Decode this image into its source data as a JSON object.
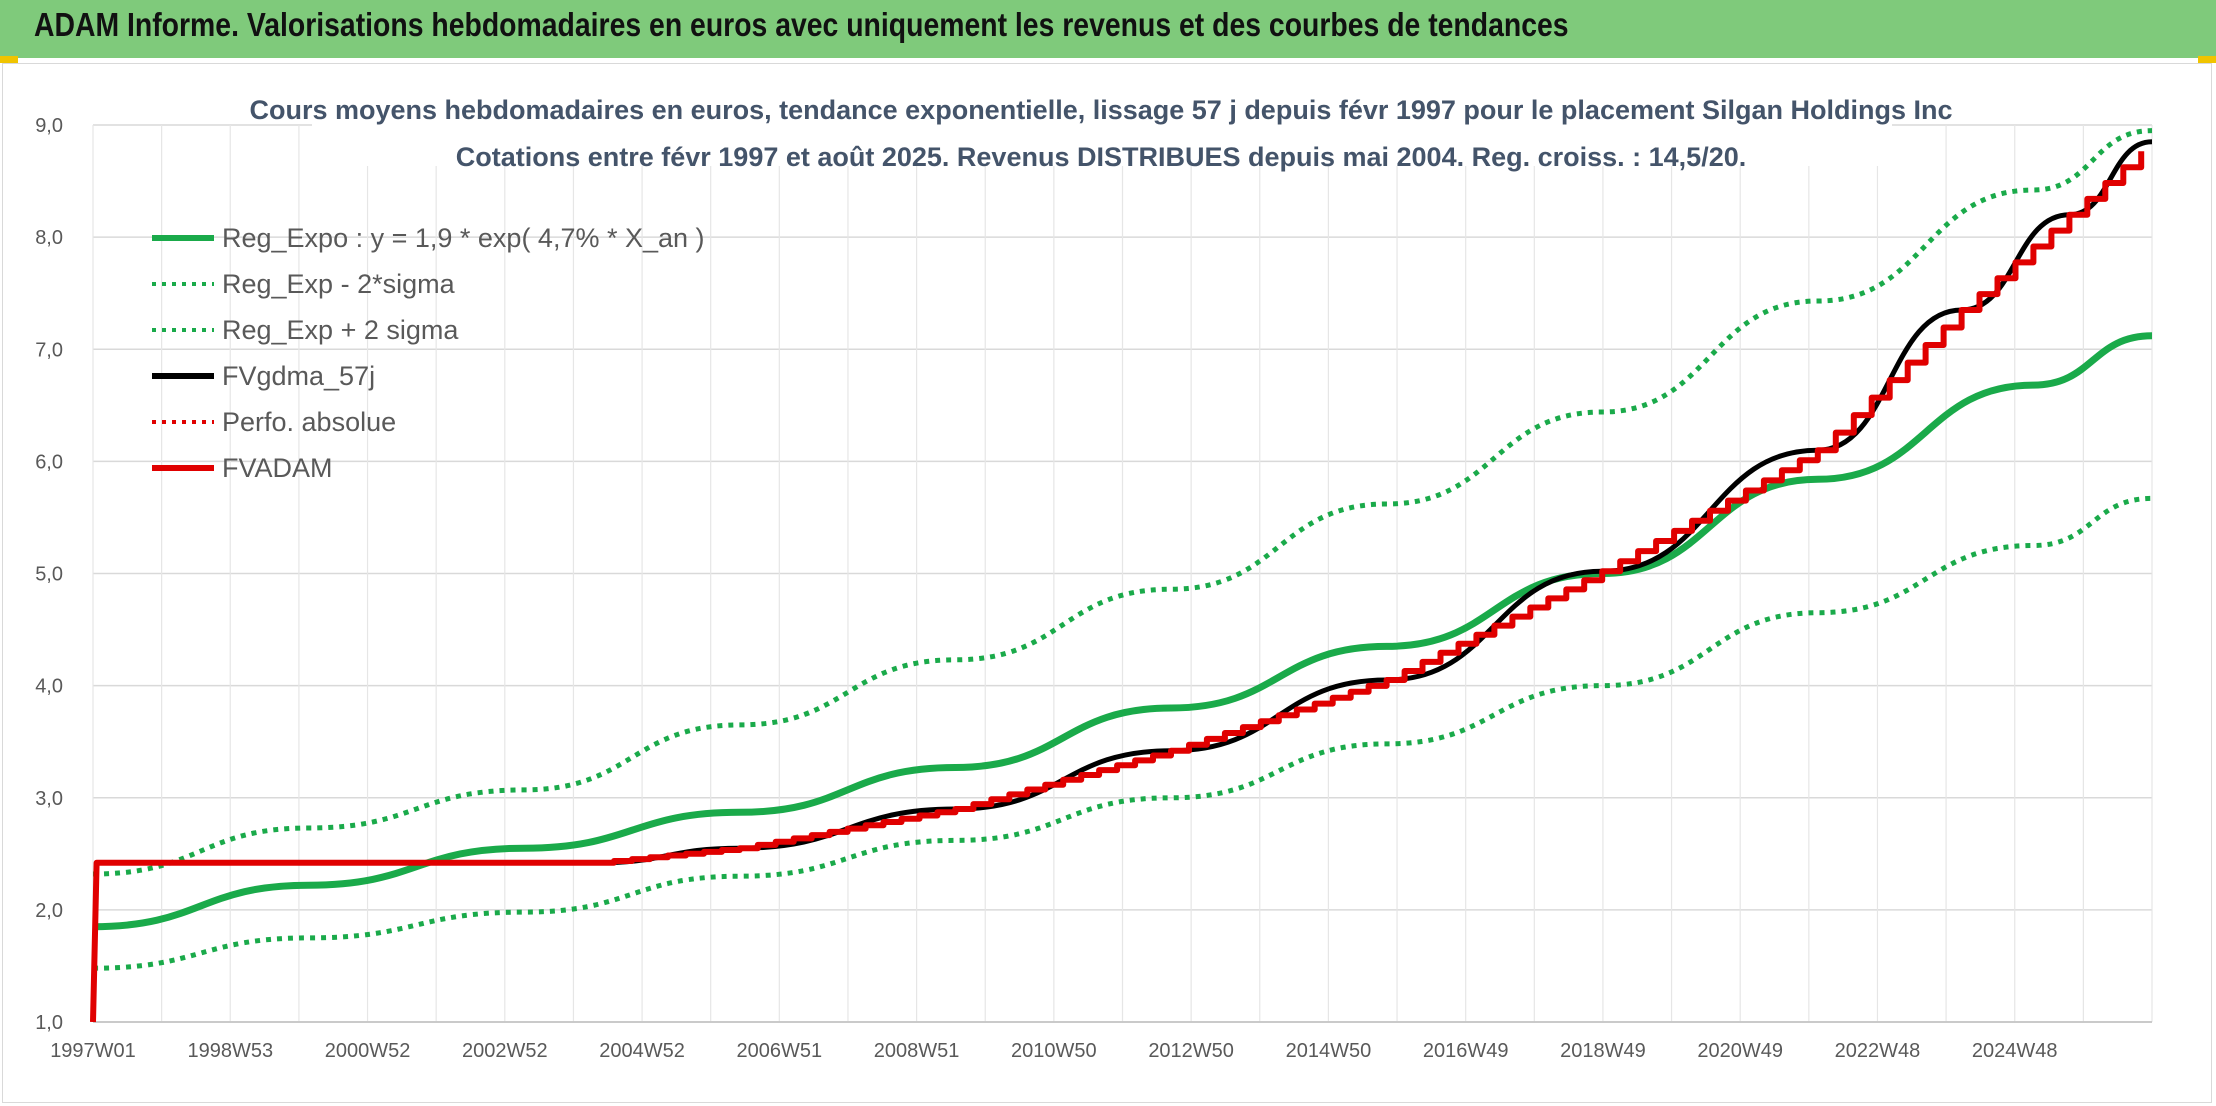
{
  "banner": {
    "title": "ADAM Informe. Valorisations hebdomadaires en euros avec uniquement les revenus et des courbes de tendances"
  },
  "colors": {
    "banner_bg": "#7fca7b",
    "accent_yellow": "#f0c400",
    "trend_green": "#1aaa4a",
    "fvadam_red": "#e00000",
    "fvgdma_black": "#000000"
  },
  "chart_data": {
    "type": "line",
    "title": "Cours moyens hebdomadaires en euros, tendance exponentielle, lissage 57 j depuis févr 1997 pour le placement Silgan Holdings Inc",
    "subtitle": "Cotations entre févr 1997 et août 2025. Revenus DISTRIBUES depuis mai 2004. Reg. croiss. : 14,5/20.",
    "x_tick_labels": [
      "1997W01",
      "1998W53",
      "2000W52",
      "2002W52",
      "2004W52",
      "2006W51",
      "2008W51",
      "2010W50",
      "2012W50",
      "2014W50",
      "2016W49",
      "2018W49",
      "2020W49",
      "2022W48",
      "2024W48"
    ],
    "y_tick_labels": [
      "1,0",
      "2,0",
      "3,0",
      "4,0",
      "5,0",
      "6,0",
      "7,0",
      "8,0",
      "9,0"
    ],
    "ylim": [
      1.0,
      9.0
    ],
    "xlim": [
      1997.0,
      2025.65
    ],
    "grid": true,
    "legend_position": "top-left",
    "series": [
      {
        "name": "Reg_Expo : y = 1,9 * exp( 4,7% *  X_an )",
        "style": "solid",
        "color": "#1aaa4a",
        "x": [
          1997.0,
          2000.0,
          2003.0,
          2006.0,
          2009.0,
          2012.0,
          2015.0,
          2018.0,
          2021.0,
          2024.0,
          2025.65
        ],
        "values": [
          1.85,
          2.22,
          2.55,
          2.87,
          3.27,
          3.8,
          4.35,
          5.0,
          5.84,
          6.68,
          7.12
        ]
      },
      {
        "name": "Reg_Exp - 2*sigma",
        "style": "dotted",
        "color": "#1aaa4a",
        "x": [
          1997.0,
          2000.0,
          2003.0,
          2006.0,
          2009.0,
          2012.0,
          2015.0,
          2018.0,
          2021.0,
          2024.0,
          2025.65
        ],
        "values": [
          1.48,
          1.75,
          1.98,
          2.3,
          2.62,
          3.0,
          3.48,
          4.0,
          4.65,
          5.25,
          5.67
        ]
      },
      {
        "name": "Reg_Exp + 2 sigma",
        "style": "dotted",
        "color": "#1aaa4a",
        "x": [
          1997.0,
          2000.0,
          2003.0,
          2006.0,
          2009.0,
          2012.0,
          2015.0,
          2018.0,
          2021.0,
          2024.0,
          2025.65
        ],
        "values": [
          2.32,
          2.73,
          3.07,
          3.65,
          4.23,
          4.86,
          5.62,
          6.44,
          7.43,
          8.42,
          8.95
        ]
      },
      {
        "name": "FVgdma_57j",
        "style": "solid",
        "color": "#000000",
        "x": [
          2004.0,
          2006.0,
          2009.0,
          2012.0,
          2015.0,
          2018.0,
          2021.0,
          2023.0,
          2024.5,
          2025.65
        ],
        "values": [
          2.42,
          2.55,
          2.9,
          3.42,
          4.05,
          5.02,
          6.1,
          7.35,
          8.2,
          8.85
        ]
      },
      {
        "name": "Perfo. absolue",
        "style": "dotted",
        "color": "#e00000",
        "x": [],
        "values": []
      },
      {
        "name": "FVADAM",
        "style": "solid",
        "color": "#e00000",
        "x": [
          1997.0,
          1997.05,
          2004.0,
          2006.0,
          2009.0,
          2012.0,
          2015.0,
          2018.0,
          2021.0,
          2023.0,
          2024.5,
          2025.65
        ],
        "values": [
          1.0,
          2.42,
          2.42,
          2.55,
          2.9,
          3.42,
          4.05,
          5.02,
          6.1,
          7.35,
          8.2,
          8.85
        ]
      }
    ]
  }
}
